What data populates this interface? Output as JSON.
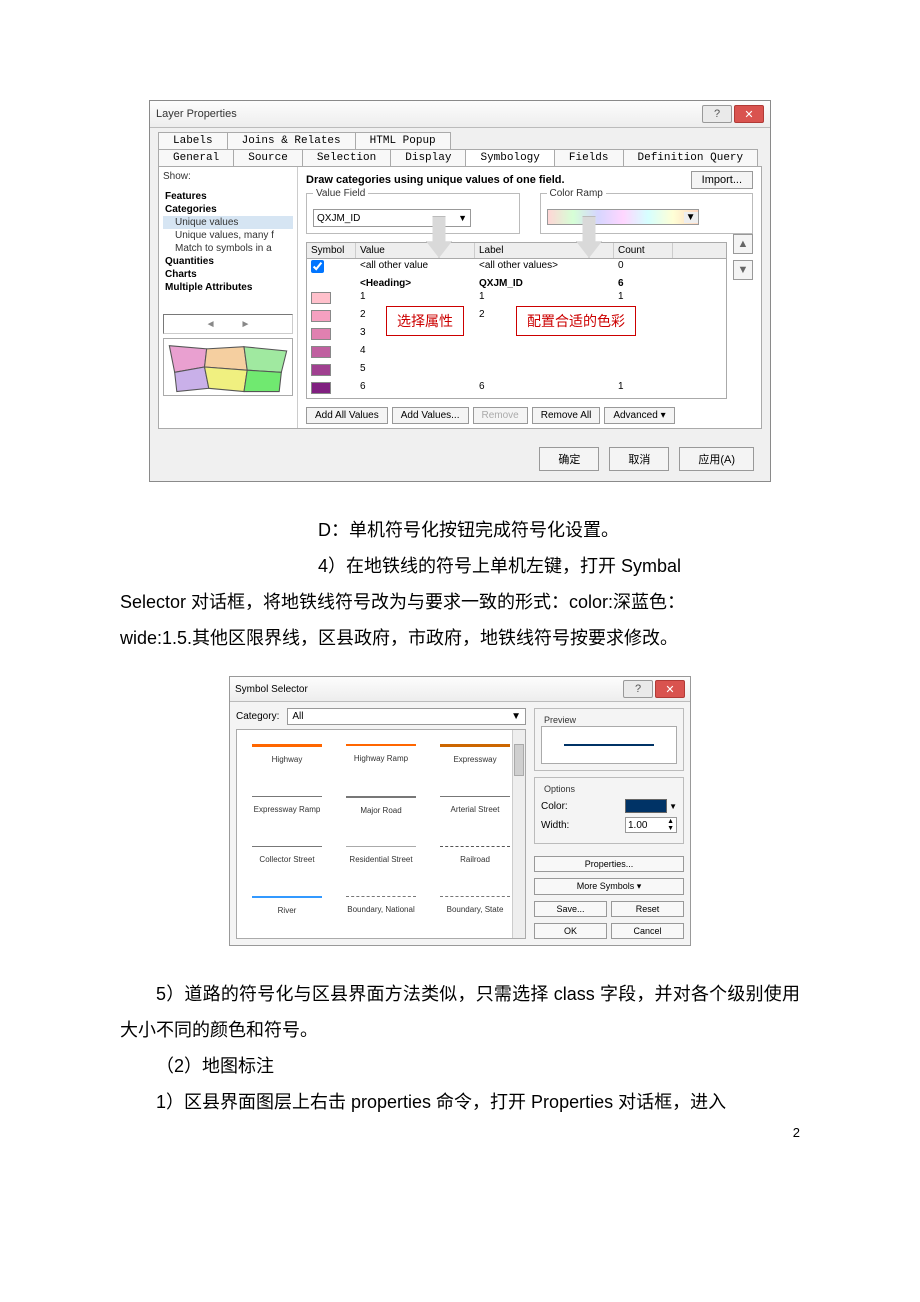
{
  "page_number": "2",
  "layer_dialog": {
    "title": "Layer Properties",
    "help_glyph": "?",
    "close_glyph": "✕",
    "tabs_row1": [
      "Labels",
      "Joins & Relates",
      "HTML Popup"
    ],
    "tabs_row2": [
      "General",
      "Source",
      "Selection",
      "Display",
      "Symbology",
      "Fields",
      "Definition Query"
    ],
    "active_tab": "Symbology",
    "show_label": "Show:",
    "tree": {
      "features": "Features",
      "categories": "Categories",
      "sub": [
        "Unique values",
        "Unique values, many f",
        "Match to symbols in a"
      ],
      "quantities": "Quantities",
      "charts": "Charts",
      "multiple": "Multiple Attributes"
    },
    "desc": "Draw categories using unique values of one field.",
    "import_btn": "Import...",
    "value_field_label": "Value Field",
    "value_field": "QXJM_ID",
    "color_ramp_label": "Color Ramp",
    "grid_head": [
      "Symbol",
      "Value",
      "Label",
      "Count"
    ],
    "rows": [
      {
        "sym": "#ffffff",
        "val": "<all other value",
        "lab": "<all other values>",
        "cnt": "0",
        "check": true
      },
      {
        "sym": "",
        "val": "<Heading>",
        "lab": "QXJM_ID",
        "cnt": "6",
        "bold": true
      },
      {
        "sym": "#ffc0cb",
        "val": "1",
        "lab": "1",
        "cnt": "1"
      },
      {
        "sym": "#f5a0c0",
        "val": "2",
        "lab": "2",
        "cnt": "1"
      },
      {
        "sym": "#e080b0",
        "val": "3",
        "lab": "",
        "cnt": ""
      },
      {
        "sym": "#c060a0",
        "val": "4",
        "lab": "",
        "cnt": ""
      },
      {
        "sym": "#a04090",
        "val": "5",
        "lab": "",
        "cnt": ""
      },
      {
        "sym": "#802080",
        "val": "6",
        "lab": "6",
        "cnt": "1"
      }
    ],
    "callout_left": "选择属性",
    "callout_right": "配置合适的色彩",
    "btn_add_all": "Add All Values",
    "btn_add": "Add Values...",
    "btn_remove": "Remove",
    "btn_remove_all": "Remove All",
    "btn_advanced": "Advanced ▾",
    "ok": "确定",
    "cancel": "取消",
    "apply": "应用(A)"
  },
  "para": {
    "d": "D：单机符号化按钮完成符号化设置。",
    "p4a": "4）在地铁线的符号上单机左键，打开 Symbal",
    "p4b": "Selector 对话框，将地铁线符号改为与要求一致的形式：color:深蓝色：",
    "p4c": "wide:1.5.其他区限界线，区县政府，市政府，地铁线符号按要求修改。",
    "p5": "5）道路的符号化与区县界面方法类似，只需选择 class 字段，并对各个级别使用大小不同的颜色和符号。",
    "h2": "（2）地图标注",
    "p1": "1）区县界面图层上右击 properties 命令，打开 Properties 对话框，进入"
  },
  "symbol_selector": {
    "title": "Symbol Selector",
    "help_glyph": "?",
    "close_glyph": "✕",
    "category_label": "Category:",
    "category_value": "All",
    "items": [
      {
        "name": "Highway",
        "color": "#ff6600",
        "w": 3
      },
      {
        "name": "Highway Ramp",
        "color": "#ff6600",
        "w": 2
      },
      {
        "name": "Expressway",
        "color": "#cc6600",
        "w": 3
      },
      {
        "name": "Expressway Ramp",
        "color": "#777",
        "w": 1
      },
      {
        "name": "Major Road",
        "color": "#777",
        "w": 2
      },
      {
        "name": "Arterial Street",
        "color": "#777",
        "w": 1
      },
      {
        "name": "Collector Street",
        "color": "#777",
        "w": 1
      },
      {
        "name": "Residential Street",
        "color": "#aaa",
        "w": 1
      },
      {
        "name": "Railroad",
        "color": "#555",
        "w": 1,
        "dash": true
      },
      {
        "name": "River",
        "color": "#3399ff",
        "w": 2
      },
      {
        "name": "Boundary, National",
        "color": "#777",
        "w": 1,
        "dash": true
      },
      {
        "name": "Boundary, State",
        "color": "#777",
        "w": 1,
        "dash": true
      }
    ],
    "preview_label": "Preview",
    "options_label": "Options",
    "color_label": "Color:",
    "width_label": "Width:",
    "width_value": "1.00",
    "btn_properties": "Properties...",
    "btn_more": "More Symbols",
    "btn_save": "Save...",
    "btn_reset": "Reset",
    "btn_ok": "OK",
    "btn_cancel": "Cancel"
  }
}
